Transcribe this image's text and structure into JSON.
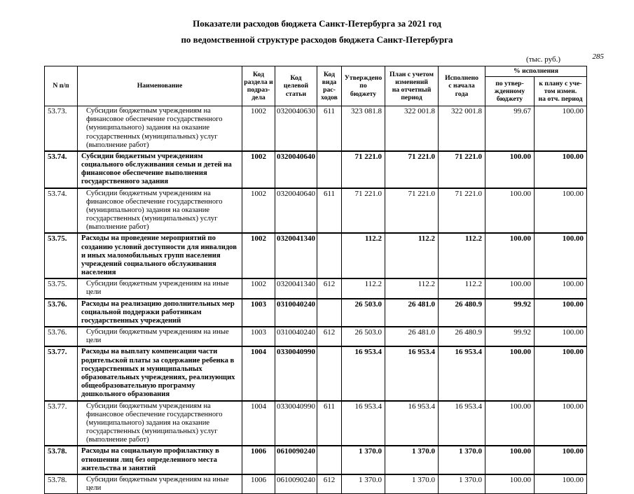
{
  "page": {
    "title": "Показатели расходов бюджета Санкт-Петербурга за 2021 год",
    "subtitle": "по ведомственной структуре расходов бюджета Санкт-Петербурга",
    "units": "(тыс. руб.)",
    "page_number": "285"
  },
  "table": {
    "headers": {
      "num": "N п/п",
      "name": "Наименование",
      "section": "Код\nраздела и\nподраз-\nдела",
      "target": "Код\nцелевой\nстатьи",
      "kind": "Код\nвида\nрас-\nходов",
      "approved": "Утверждено\nпо\nбюджету",
      "plan": "План с учетом\nизменений\nна отчетный\nпериод",
      "executed": "Исполнено\nс начала\nгода",
      "pct_group": "% исполнения",
      "pct_budget": "по утвер-\nжденному\nбюджету",
      "pct_plan": "к плану с уче-\nтом измен.\nна отч. период"
    },
    "rows": [
      {
        "num": "53.73.",
        "name": "Субсидии бюджетным учреждениям на финансовое обеспечение государственного (муниципального) задания на оказание государственных (муниципальных) услуг (выполнение работ)",
        "section": "1002",
        "target": "0320040630",
        "kind": "611",
        "approved": "323 081.8",
        "plan": "322 001.8",
        "executed": "322 001.8",
        "pct_budget": "99.67",
        "pct_plan": "100.00",
        "bold": false
      },
      {
        "num": "53.74.",
        "name": "Субсидии бюджетным учреждениям социального обслуживания семьи и детей на финансовое обеспечение выполнения государственного задания",
        "section": "1002",
        "target": "0320040640",
        "kind": "",
        "approved": "71 221.0",
        "plan": "71 221.0",
        "executed": "71 221.0",
        "pct_budget": "100.00",
        "pct_plan": "100.00",
        "bold": true
      },
      {
        "num": "53.74.",
        "name": "Субсидии бюджетным учреждениям на финансовое обеспечение государственного (муниципального) задания на оказание государственных (муниципальных) услуг (выполнение работ)",
        "section": "1002",
        "target": "0320040640",
        "kind": "611",
        "approved": "71 221.0",
        "plan": "71 221.0",
        "executed": "71 221.0",
        "pct_budget": "100.00",
        "pct_plan": "100.00",
        "bold": false
      },
      {
        "num": "53.75.",
        "name": "Расходы на проведение мероприятий по созданию условий доступности для инвалидов и иных маломобильных групп населения учреждений социального обслуживания населения",
        "section": "1002",
        "target": "0320041340",
        "kind": "",
        "approved": "112.2",
        "plan": "112.2",
        "executed": "112.2",
        "pct_budget": "100.00",
        "pct_plan": "100.00",
        "bold": true
      },
      {
        "num": "53.75.",
        "name": "Субсидии бюджетным учреждениям на иные цели",
        "section": "1002",
        "target": "0320041340",
        "kind": "612",
        "approved": "112.2",
        "plan": "112.2",
        "executed": "112.2",
        "pct_budget": "100.00",
        "pct_plan": "100.00",
        "bold": false
      },
      {
        "num": "53.76.",
        "name": "Расходы на реализацию дополнительных мер социальной поддержки работникам государственных учреждений",
        "section": "1003",
        "target": "0310040240",
        "kind": "",
        "approved": "26 503.0",
        "plan": "26 481.0",
        "executed": "26 480.9",
        "pct_budget": "99.92",
        "pct_plan": "100.00",
        "bold": true
      },
      {
        "num": "53.76.",
        "name": "Субсидии бюджетным учреждениям на иные цели",
        "section": "1003",
        "target": "0310040240",
        "kind": "612",
        "approved": "26 503.0",
        "plan": "26 481.0",
        "executed": "26 480.9",
        "pct_budget": "99.92",
        "pct_plan": "100.00",
        "bold": false
      },
      {
        "num": "53.77.",
        "name": "Расходы на выплату компенсации части родительской платы за содержание ребенка в государственных и муниципальных образовательных учреждениях, реализующих общеобразовательную программу дошкольного образования",
        "section": "1004",
        "target": "0330040990",
        "kind": "",
        "approved": "16 953.4",
        "plan": "16 953.4",
        "executed": "16 953.4",
        "pct_budget": "100.00",
        "pct_plan": "100.00",
        "bold": true
      },
      {
        "num": "53.77.",
        "name": "Субсидии бюджетным учреждениям на финансовое обеспечение государственного (муниципального) задания на оказание государственных (муниципальных) услуг (выполнение работ)",
        "section": "1004",
        "target": "0330040990",
        "kind": "611",
        "approved": "16 953.4",
        "plan": "16 953.4",
        "executed": "16 953.4",
        "pct_budget": "100.00",
        "pct_plan": "100.00",
        "bold": false
      },
      {
        "num": "53.78.",
        "name": "Расходы на социальную профилактику в отношении лиц без определенного места жительства и занятий",
        "section": "1006",
        "target": "0610090240",
        "kind": "",
        "approved": "1 370.0",
        "plan": "1 370.0",
        "executed": "1 370.0",
        "pct_budget": "100.00",
        "pct_plan": "100.00",
        "bold": true
      },
      {
        "num": "53.78.",
        "name": "Субсидии бюджетным учреждениям на иные цели",
        "section": "1006",
        "target": "0610090240",
        "kind": "612",
        "approved": "1 370.0",
        "plan": "1 370.0",
        "executed": "1 370.0",
        "pct_budget": "100.00",
        "pct_plan": "100.00",
        "bold": false
      }
    ]
  }
}
